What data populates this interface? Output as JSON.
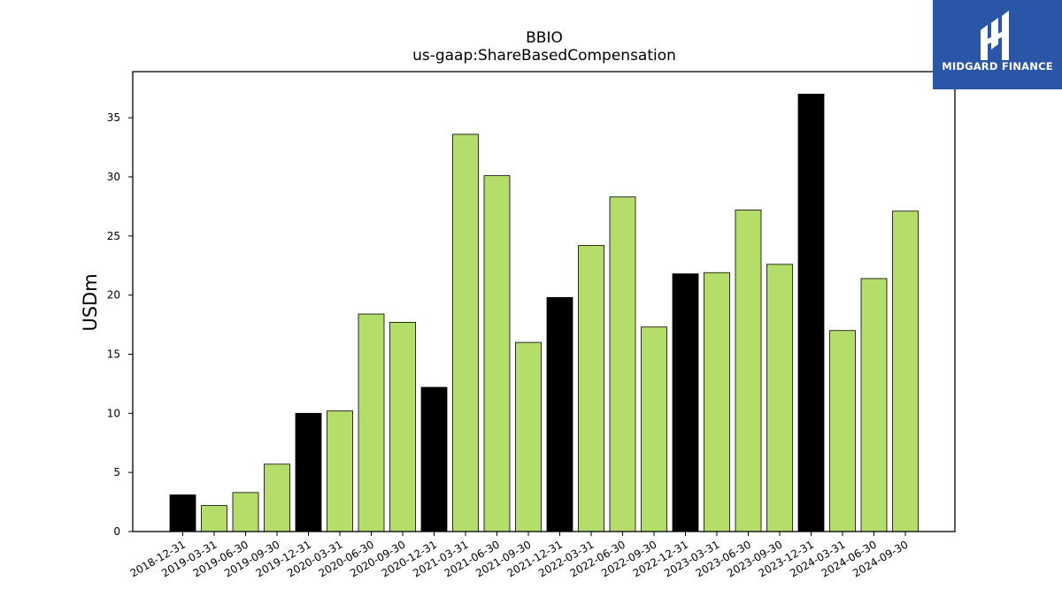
{
  "chart_data": {
    "type": "bar",
    "title": "BBIO",
    "subtitle": "us-gaap:ShareBasedCompensation",
    "xlabel": "",
    "ylabel": "USDm",
    "ylim": [
      0,
      38.9
    ],
    "yticks": [
      0,
      5,
      10,
      15,
      20,
      25,
      30,
      35
    ],
    "grid": false,
    "colors": {
      "quarter": "#b5dd6a",
      "year_end": "#000000",
      "edge": "#000000"
    },
    "categories": [
      "2018-12-31",
      "2019-03-31",
      "2019-06-30",
      "2019-09-30",
      "2019-12-31",
      "2020-03-31",
      "2020-06-30",
      "2020-09-30",
      "2020-12-31",
      "2021-03-31",
      "2021-06-30",
      "2021-09-30",
      "2021-12-31",
      "2022-03-31",
      "2022-06-30",
      "2022-09-30",
      "2022-12-31",
      "2023-03-31",
      "2023-06-30",
      "2023-09-30",
      "2023-12-31",
      "2024-03-31",
      "2024-06-30",
      "2024-09-30"
    ],
    "values": [
      3.1,
      2.2,
      3.3,
      5.7,
      10.0,
      10.2,
      18.4,
      17.7,
      12.2,
      33.6,
      30.1,
      16.0,
      19.8,
      24.2,
      28.3,
      17.3,
      21.8,
      21.9,
      27.2,
      22.6,
      37.0,
      17.0,
      21.4,
      27.1
    ],
    "year_end": [
      true,
      false,
      false,
      false,
      true,
      false,
      false,
      false,
      true,
      false,
      false,
      false,
      true,
      false,
      false,
      false,
      true,
      false,
      false,
      false,
      true,
      false,
      false,
      false
    ]
  },
  "logo": {
    "text": "MIDGARD FINANCE",
    "icon": "midgard-logo-icon",
    "background": "#2b56a8"
  }
}
